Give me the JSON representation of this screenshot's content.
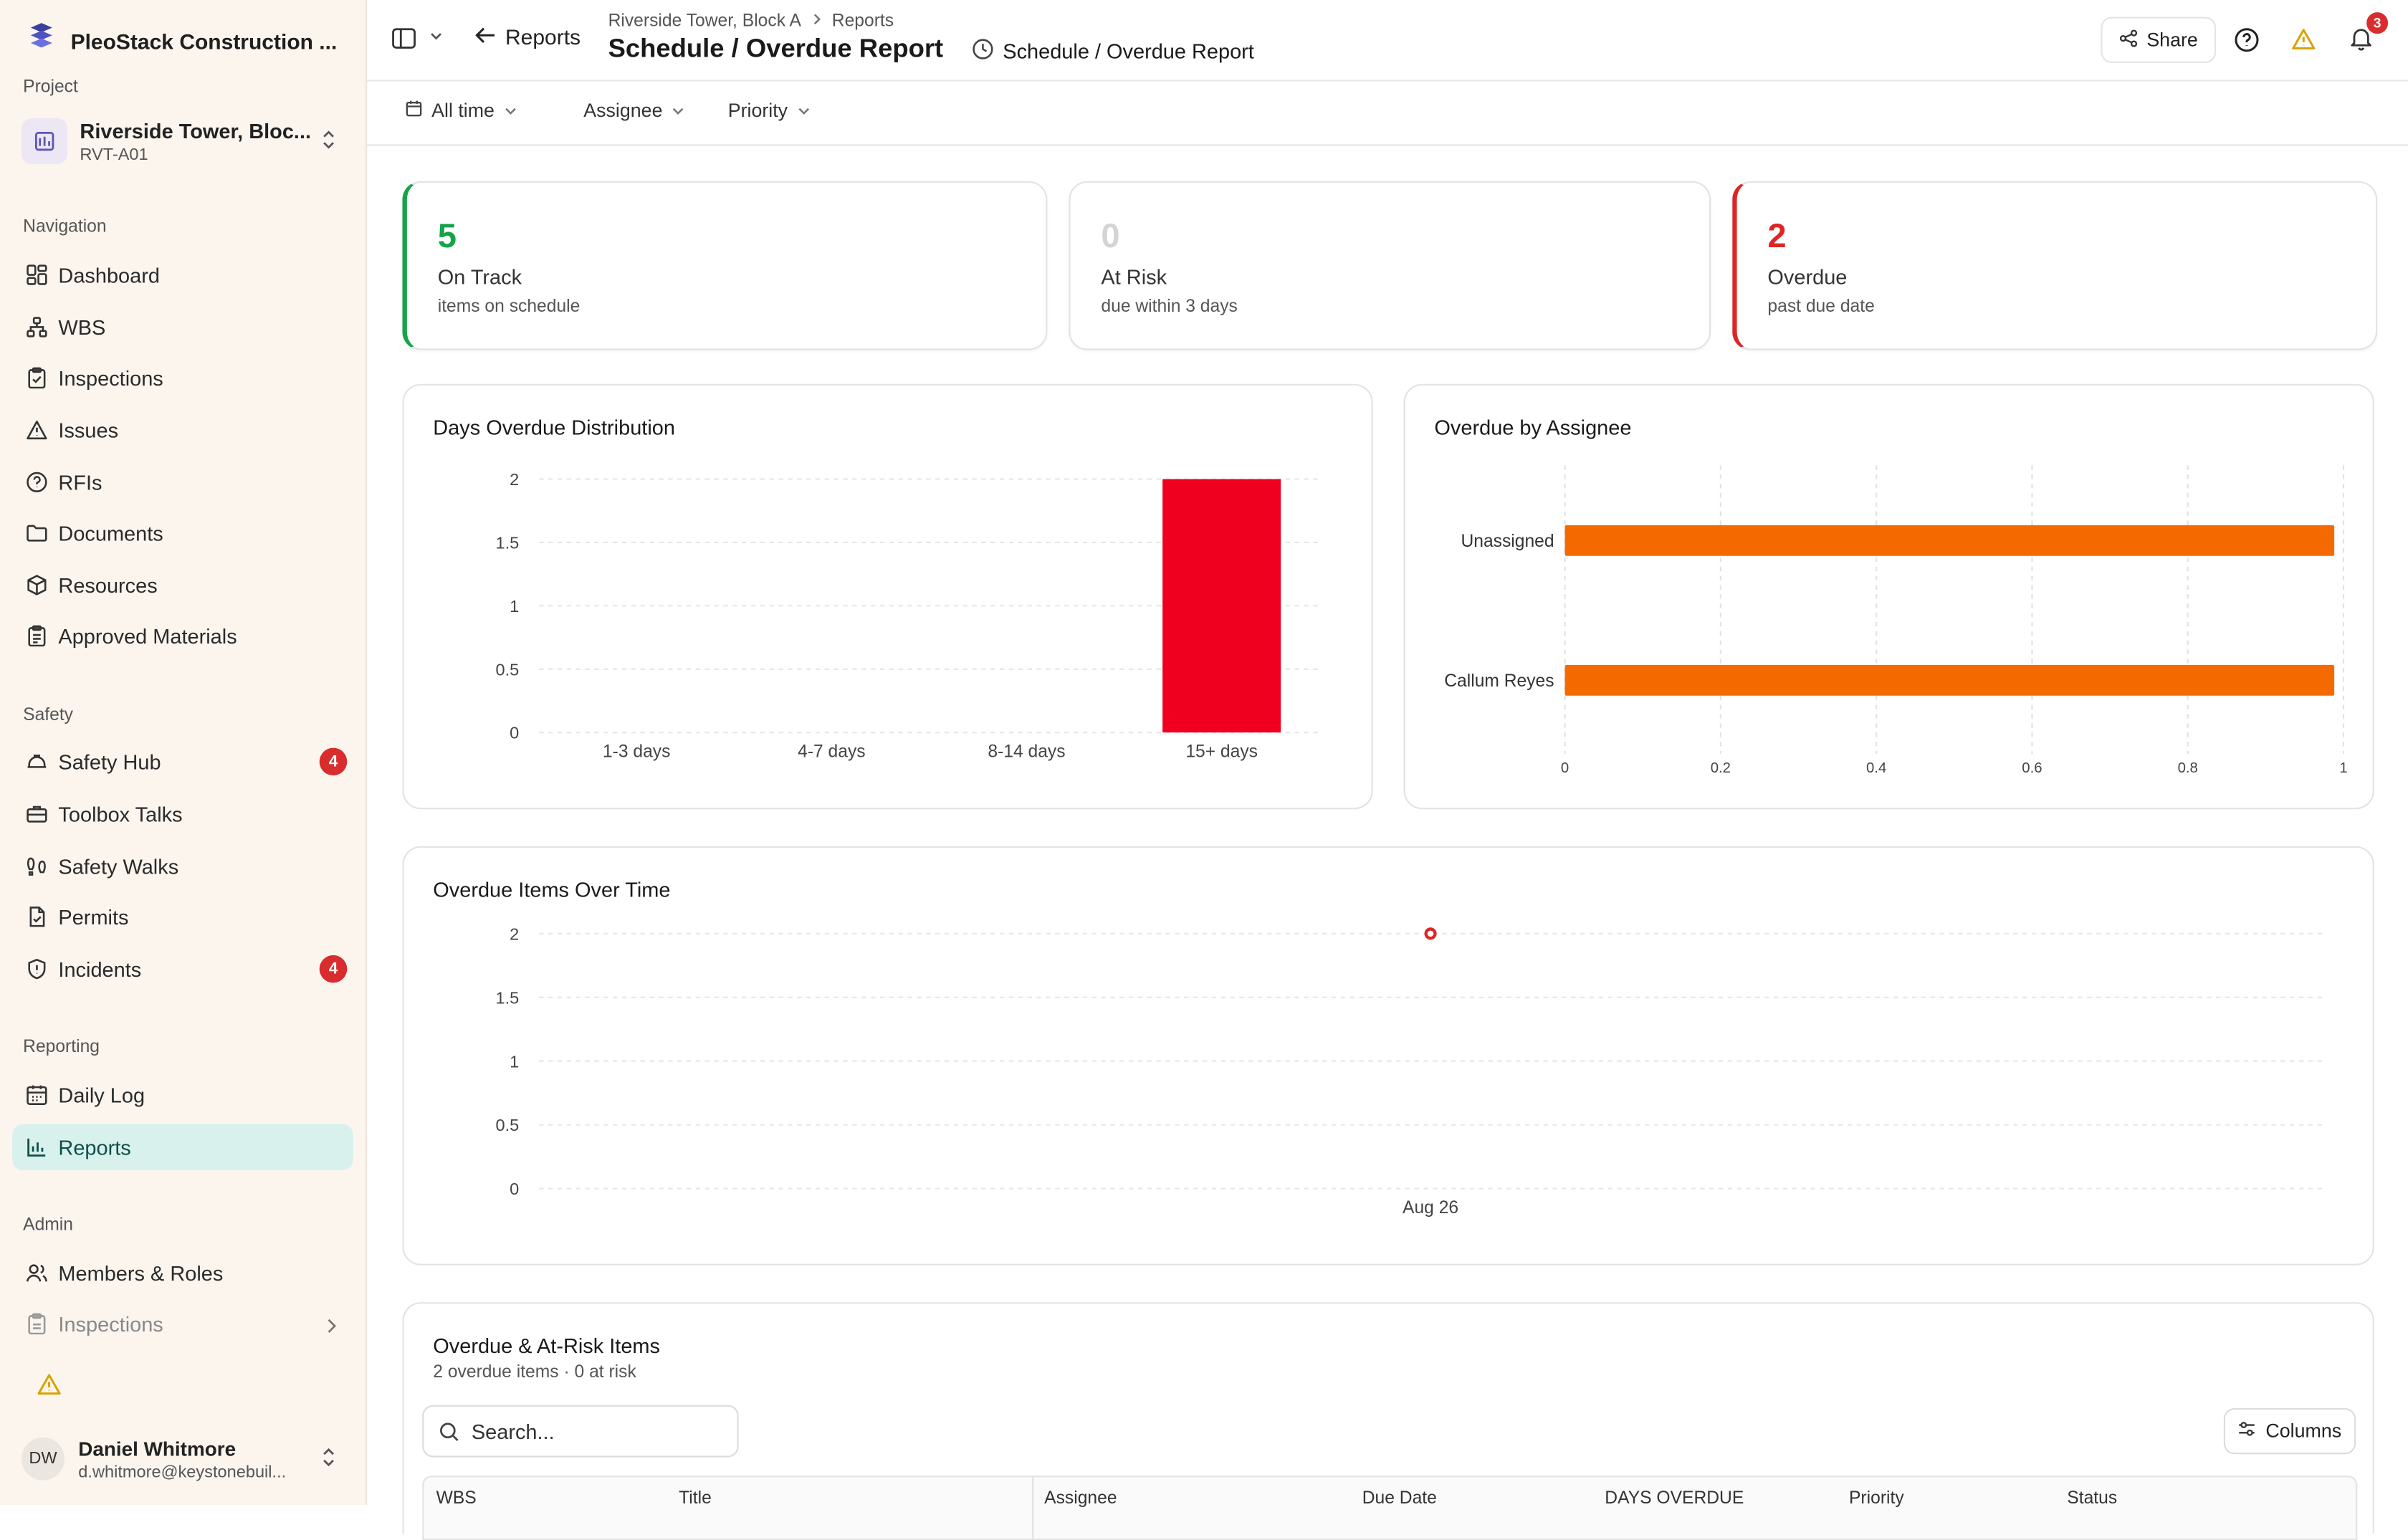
{
  "brand": {
    "name": "PleoStack Construction ..."
  },
  "project": {
    "section_label": "Project",
    "name": "Riverside Tower, Bloc...",
    "code": "RVT-A01"
  },
  "nav": {
    "navigation_label": "Navigation",
    "navigation": [
      {
        "label": "Dashboard",
        "icon": "dashboard-icon"
      },
      {
        "label": "WBS",
        "icon": "hierarchy-icon"
      },
      {
        "label": "Inspections",
        "icon": "clipboard-check-icon"
      },
      {
        "label": "Issues",
        "icon": "warning-triangle-icon"
      },
      {
        "label": "RFIs",
        "icon": "question-circle-icon"
      },
      {
        "label": "Documents",
        "icon": "folder-icon"
      },
      {
        "label": "Resources",
        "icon": "box-icon"
      },
      {
        "label": "Approved Materials",
        "icon": "clipboard-list-icon"
      }
    ],
    "safety_label": "Safety",
    "safety": [
      {
        "label": "Safety Hub",
        "icon": "hard-hat-icon",
        "badge": "4"
      },
      {
        "label": "Toolbox Talks",
        "icon": "toolbox-icon"
      },
      {
        "label": "Safety Walks",
        "icon": "footprints-icon"
      },
      {
        "label": "Permits",
        "icon": "file-check-icon"
      },
      {
        "label": "Incidents",
        "icon": "shield-alert-icon",
        "badge": "4"
      }
    ],
    "reporting_label": "Reporting",
    "reporting": [
      {
        "label": "Daily Log",
        "icon": "calendar-icon"
      },
      {
        "label": "Reports",
        "icon": "bar-chart-icon",
        "active": true
      }
    ],
    "admin_label": "Admin",
    "admin": [
      {
        "label": "Members & Roles",
        "icon": "users-icon"
      },
      {
        "label": "Inspections",
        "icon": "clipboard-icon"
      }
    ]
  },
  "user": {
    "initials": "DW",
    "name": "Daniel Whitmore",
    "email": "d.whitmore@keystonebuil..."
  },
  "header": {
    "back_label": "Reports",
    "breadcrumb": [
      "Riverside Tower, Block A",
      "Reports"
    ],
    "title": "Schedule / Overdue Report",
    "subtitle": "Schedule / Overdue Report",
    "share_label": "Share",
    "notification_count": "3"
  },
  "filters": {
    "time": "All time",
    "assignee": "Assignee",
    "priority": "Priority"
  },
  "colors": {
    "on_track": "#16a34a",
    "at_risk": "#d4d4d4",
    "overdue": "#dc2626",
    "bar_red": "#f0001e",
    "bar_orange": "#f56a00"
  },
  "stats": [
    {
      "value": "5",
      "label": "On Track",
      "sub": "items on schedule"
    },
    {
      "value": "0",
      "label": "At Risk",
      "sub": "due within 3 days"
    },
    {
      "value": "2",
      "label": "Overdue",
      "sub": "past due date"
    }
  ],
  "charts": {
    "distribution_title": "Days Overdue Distribution",
    "assignee_title": "Overdue by Assignee",
    "time_title": "Overdue Items Over Time"
  },
  "chart_data": [
    {
      "type": "bar",
      "title": "Days Overdue Distribution",
      "categories": [
        "1-3 days",
        "4-7 days",
        "8-14 days",
        "15+ days"
      ],
      "values": [
        0,
        0,
        0,
        2
      ],
      "yticks": [
        "0",
        "0.5",
        "1",
        "1.5",
        "2"
      ],
      "ylim": [
        0,
        2
      ],
      "grid": true
    },
    {
      "type": "bar",
      "orientation": "horizontal",
      "title": "Overdue by Assignee",
      "categories": [
        "Unassigned",
        "Callum Reyes"
      ],
      "values": [
        1,
        1
      ],
      "xticks": [
        "0",
        "0.2",
        "0.4",
        "0.6",
        "0.8",
        "1"
      ],
      "xlim": [
        0,
        1
      ],
      "grid": true
    },
    {
      "type": "line",
      "title": "Overdue Items Over Time",
      "x": [
        "Aug 26"
      ],
      "values": [
        2
      ],
      "yticks": [
        "0",
        "0.5",
        "1",
        "1.5",
        "2"
      ],
      "ylim": [
        0,
        2
      ],
      "grid": true
    }
  ],
  "table": {
    "title": "Overdue & At-Risk Items",
    "summary": "2 overdue items · 0 at risk",
    "search_placeholder": "Search...",
    "columns_label": "Columns",
    "headers": [
      "WBS",
      "Title",
      "Assignee",
      "Due Date",
      "DAYS OVERDUE",
      "Priority",
      "Status"
    ]
  }
}
